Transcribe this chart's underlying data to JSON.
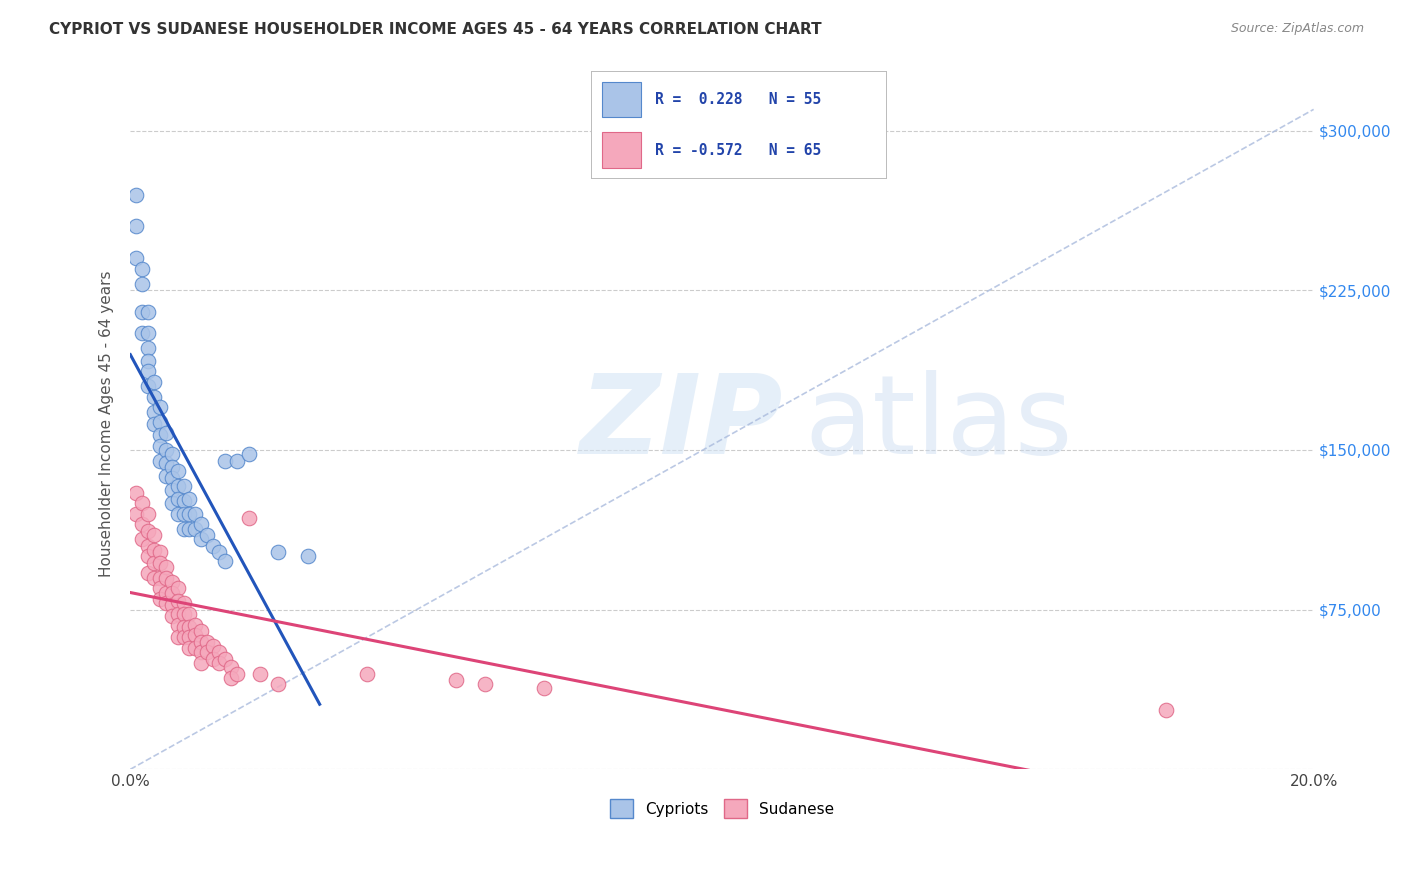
{
  "title": "CYPRIOT VS SUDANESE HOUSEHOLDER INCOME AGES 45 - 64 YEARS CORRELATION CHART",
  "source": "Source: ZipAtlas.com",
  "ylabel": "Householder Income Ages 45 - 64 years",
  "xlim": [
    0.0,
    0.2
  ],
  "ylim": [
    0,
    325000
  ],
  "xticks": [
    0.0,
    0.05,
    0.1,
    0.15,
    0.2
  ],
  "xticklabels": [
    "0.0%",
    "",
    "",
    "",
    "20.0%"
  ],
  "yticks": [
    0,
    75000,
    150000,
    225000,
    300000
  ],
  "yticklabels": [
    "",
    "$75,000",
    "$150,000",
    "$225,000",
    "$300,000"
  ],
  "grid_color": "#cccccc",
  "background_color": "#ffffff",
  "cypriot_color": "#aac4e8",
  "sudanese_color": "#f5a8bc",
  "cypriot_edge_color": "#5588cc",
  "sudanese_edge_color": "#e06888",
  "trend_blue_color": "#2255bb",
  "trend_pink_color": "#dd4477",
  "trend_dashed_color": "#aabbdd",
  "R_cypriot": 0.228,
  "N_cypriot": 55,
  "R_sudanese": -0.572,
  "N_sudanese": 65,
  "cypriot_x": [
    0.001,
    0.001,
    0.001,
    0.002,
    0.002,
    0.002,
    0.002,
    0.003,
    0.003,
    0.003,
    0.003,
    0.003,
    0.003,
    0.004,
    0.004,
    0.004,
    0.004,
    0.005,
    0.005,
    0.005,
    0.005,
    0.005,
    0.006,
    0.006,
    0.006,
    0.006,
    0.007,
    0.007,
    0.007,
    0.007,
    0.007,
    0.008,
    0.008,
    0.008,
    0.008,
    0.009,
    0.009,
    0.009,
    0.009,
    0.01,
    0.01,
    0.01,
    0.011,
    0.011,
    0.012,
    0.012,
    0.013,
    0.014,
    0.015,
    0.016,
    0.016,
    0.018,
    0.02,
    0.025,
    0.03
  ],
  "cypriot_y": [
    270000,
    255000,
    240000,
    235000,
    228000,
    215000,
    205000,
    215000,
    205000,
    198000,
    192000,
    187000,
    180000,
    182000,
    175000,
    168000,
    162000,
    170000,
    163000,
    157000,
    152000,
    145000,
    158000,
    150000,
    144000,
    138000,
    148000,
    142000,
    137000,
    131000,
    125000,
    140000,
    133000,
    127000,
    120000,
    133000,
    126000,
    120000,
    113000,
    127000,
    120000,
    113000,
    120000,
    113000,
    115000,
    108000,
    110000,
    105000,
    102000,
    98000,
    145000,
    145000,
    148000,
    102000,
    100000
  ],
  "sudanese_x": [
    0.001,
    0.001,
    0.002,
    0.002,
    0.002,
    0.003,
    0.003,
    0.003,
    0.003,
    0.003,
    0.004,
    0.004,
    0.004,
    0.004,
    0.005,
    0.005,
    0.005,
    0.005,
    0.005,
    0.006,
    0.006,
    0.006,
    0.006,
    0.007,
    0.007,
    0.007,
    0.007,
    0.008,
    0.008,
    0.008,
    0.008,
    0.008,
    0.009,
    0.009,
    0.009,
    0.009,
    0.01,
    0.01,
    0.01,
    0.01,
    0.011,
    0.011,
    0.011,
    0.012,
    0.012,
    0.012,
    0.012,
    0.013,
    0.013,
    0.014,
    0.014,
    0.015,
    0.015,
    0.016,
    0.017,
    0.017,
    0.018,
    0.02,
    0.022,
    0.025,
    0.04,
    0.055,
    0.06,
    0.07,
    0.175
  ],
  "sudanese_y": [
    130000,
    120000,
    125000,
    115000,
    108000,
    120000,
    112000,
    105000,
    100000,
    92000,
    110000,
    103000,
    97000,
    90000,
    102000,
    97000,
    90000,
    85000,
    80000,
    95000,
    90000,
    83000,
    78000,
    88000,
    83000,
    77000,
    72000,
    85000,
    79000,
    73000,
    68000,
    62000,
    78000,
    73000,
    67000,
    62000,
    73000,
    67000,
    62000,
    57000,
    68000,
    63000,
    57000,
    65000,
    60000,
    55000,
    50000,
    60000,
    55000,
    58000,
    52000,
    55000,
    50000,
    52000,
    48000,
    43000,
    45000,
    118000,
    45000,
    40000,
    45000,
    42000,
    40000,
    38000,
    28000
  ]
}
